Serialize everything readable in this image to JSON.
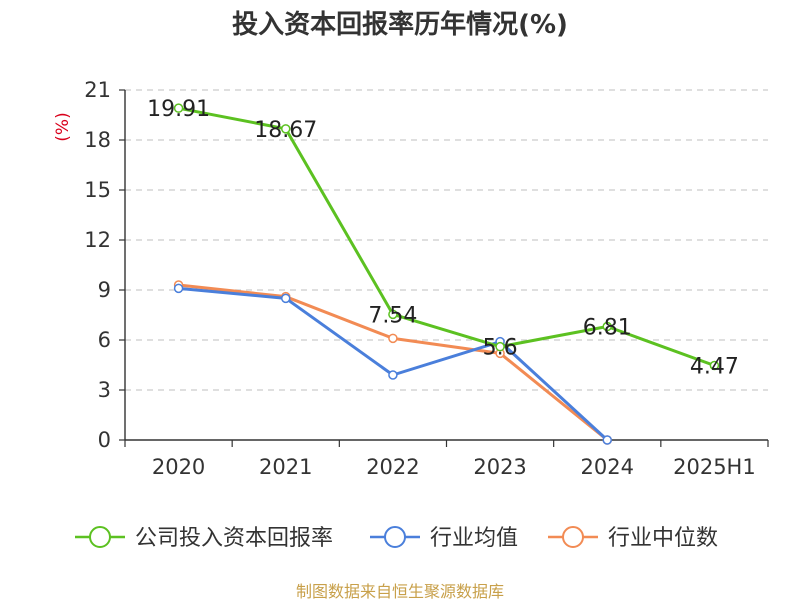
{
  "chart_data": {
    "type": "line",
    "title": "投入资本回报率历年情况(%)",
    "ylabel": "(%)",
    "categories": [
      "2020",
      "2021",
      "2022",
      "2023",
      "2024",
      "2025H1"
    ],
    "ylim": [
      0,
      21
    ],
    "yticks": [
      0,
      3,
      6,
      9,
      12,
      15,
      18,
      21
    ],
    "grid": true,
    "legend_position": "bottom",
    "series": [
      {
        "name": "公司投入资本回报率",
        "color": "#5cc121",
        "values": [
          19.91,
          18.67,
          7.54,
          5.6,
          6.81,
          4.47
        ],
        "labels": [
          "19.91",
          "18.67",
          "7.54",
          "5.6",
          "6.81",
          "4.47"
        ]
      },
      {
        "name": "行业均值",
        "color": "#4a7fdb",
        "values": [
          9.1,
          8.5,
          3.9,
          5.9,
          0.0,
          null
        ]
      },
      {
        "name": "行业中位数",
        "color": "#f28b54",
        "values": [
          9.3,
          8.6,
          6.1,
          5.2,
          0.0,
          null
        ]
      }
    ]
  },
  "footer": {
    "source": "制图数据来自恒生聚源数据库"
  }
}
